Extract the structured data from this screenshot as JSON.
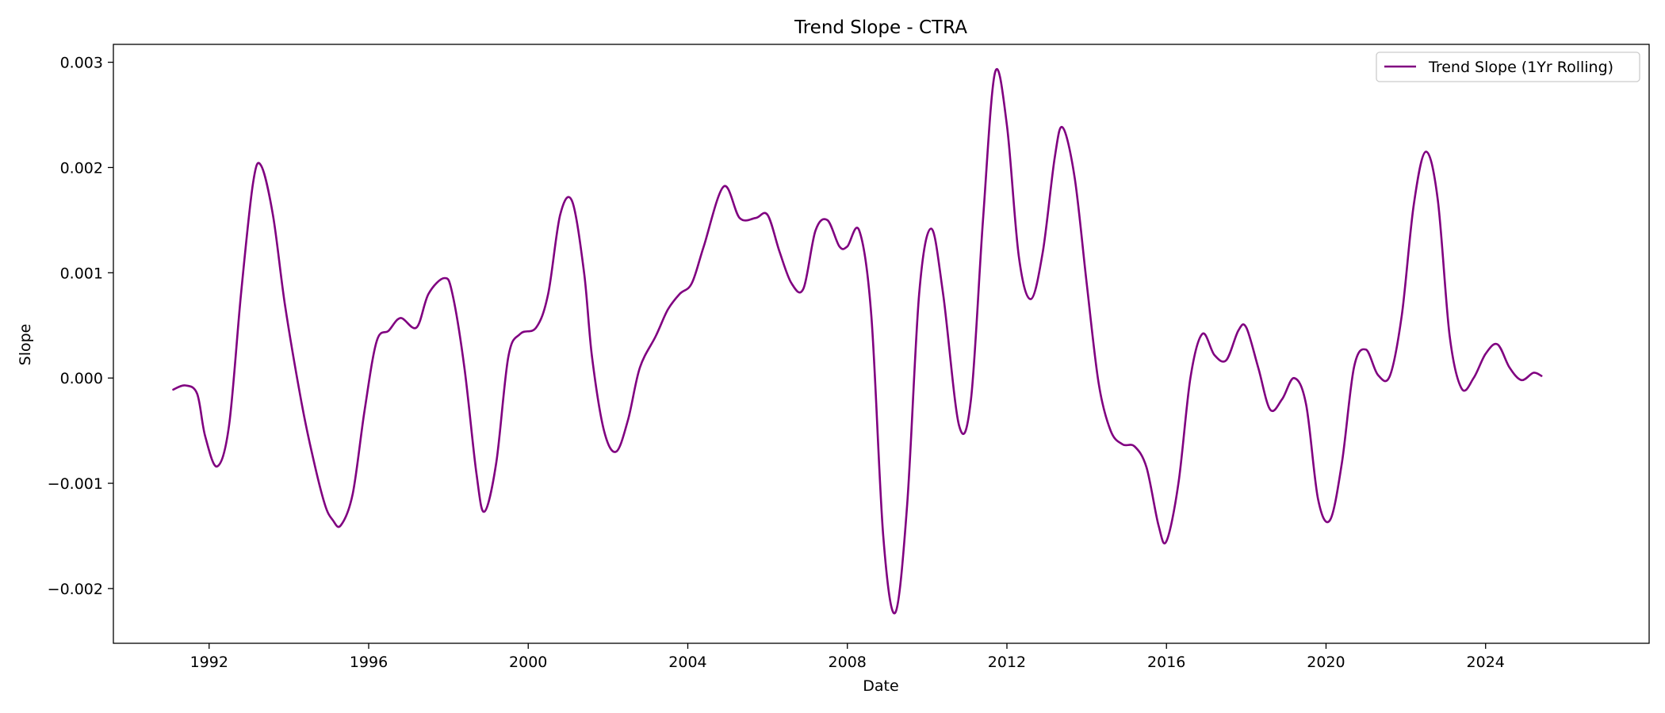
{
  "chart_data": {
    "type": "line",
    "title": "Trend Slope - CTRA",
    "xlabel": "Date",
    "ylabel": "Slope",
    "xlim": [
      1989.6,
      2028.1
    ],
    "ylim": [
      -0.00252,
      0.00317
    ],
    "xticks": [
      1992,
      1996,
      2000,
      2004,
      2008,
      2012,
      2016,
      2020,
      2024
    ],
    "xtick_labels": [
      "1992",
      "1996",
      "2000",
      "2004",
      "2008",
      "2012",
      "2016",
      "2020",
      "2024"
    ],
    "yticks": [
      -0.002,
      -0.001,
      0.0,
      0.001,
      0.002,
      0.003
    ],
    "ytick_labels": [
      "−0.002",
      "−0.001",
      "0.000",
      "0.001",
      "0.002",
      "0.003"
    ],
    "grid": false,
    "legend_position": "top-right",
    "color": "#800080",
    "series": [
      {
        "name": "Trend Slope (1Yr Rolling)",
        "x": [
          1991.1,
          1991.4,
          1991.7,
          1991.9,
          1992.2,
          1992.5,
          1992.8,
          1993.1,
          1993.3,
          1993.6,
          1993.9,
          1994.3,
          1994.6,
          1994.9,
          1995.1,
          1995.3,
          1995.6,
          1995.9,
          1996.2,
          1996.5,
          1996.8,
          1997.2,
          1997.5,
          1997.9,
          1998.1,
          1998.4,
          1998.7,
          1998.9,
          1999.2,
          1999.5,
          1999.8,
          2000.2,
          2000.5,
          2000.8,
          2001.1,
          2001.4,
          2001.6,
          2001.9,
          2002.2,
          2002.5,
          2002.8,
          2003.2,
          2003.5,
          2003.8,
          2004.1,
          2004.4,
          2004.9,
          2005.3,
          2005.7,
          2006.0,
          2006.3,
          2006.6,
          2006.9,
          2007.2,
          2007.5,
          2007.8,
          2008.0,
          2008.3,
          2008.6,
          2008.9,
          2009.2,
          2009.5,
          2009.8,
          2010.1,
          2010.4,
          2010.8,
          2011.1,
          2011.4,
          2011.7,
          2012.0,
          2012.3,
          2012.6,
          2012.9,
          2013.2,
          2013.4,
          2013.7,
          2014.0,
          2014.3,
          2014.6,
          2014.9,
          2015.2,
          2015.5,
          2015.8,
          2016.0,
          2016.3,
          2016.6,
          2016.9,
          2017.2,
          2017.5,
          2017.8,
          2018.0,
          2018.3,
          2018.6,
          2018.9,
          2019.2,
          2019.5,
          2019.8,
          2020.1,
          2020.4,
          2020.7,
          2021.0,
          2021.3,
          2021.6,
          2021.9,
          2022.2,
          2022.5,
          2022.8,
          2023.1,
          2023.4,
          2023.7,
          2024.0,
          2024.3,
          2024.6,
          2024.9,
          2025.2,
          2025.4
        ],
        "y": [
          -0.00011,
          -7e-05,
          -0.00015,
          -0.00055,
          -0.00084,
          -0.00045,
          0.0008,
          0.00185,
          0.00202,
          0.00155,
          0.0007,
          -0.0002,
          -0.00075,
          -0.0012,
          -0.00135,
          -0.0014,
          -0.0011,
          -0.0003,
          0.00035,
          0.00045,
          0.00057,
          0.00048,
          0.0008,
          0.00095,
          0.0008,
          0.0001,
          -0.0009,
          -0.00127,
          -0.0008,
          0.0002,
          0.00042,
          0.00048,
          0.0008,
          0.00155,
          0.00168,
          0.001,
          0.0002,
          -0.0005,
          -0.0007,
          -0.0004,
          0.0001,
          0.0004,
          0.00065,
          0.0008,
          0.0009,
          0.00125,
          0.00182,
          0.00152,
          0.00152,
          0.00155,
          0.0012,
          0.0009,
          0.00085,
          0.0014,
          0.0015,
          0.00125,
          0.00125,
          0.0014,
          0.0006,
          -0.0015,
          -0.00223,
          -0.0012,
          0.0008,
          0.00142,
          0.0008,
          -0.00045,
          -0.0002,
          0.0015,
          0.0029,
          0.0024,
          0.00115,
          0.00075,
          0.0012,
          0.0021,
          0.00238,
          0.0019,
          0.0009,
          -5e-05,
          -0.0005,
          -0.00063,
          -0.00065,
          -0.00085,
          -0.0014,
          -0.00155,
          -0.001,
          0.0,
          0.00042,
          0.00022,
          0.00017,
          0.00045,
          0.00048,
          0.0001,
          -0.0003,
          -0.0002,
          0.0,
          -0.00025,
          -0.00115,
          -0.00135,
          -0.0008,
          0.0001,
          0.00027,
          3e-05,
          2e-05,
          0.0006,
          0.00165,
          0.00215,
          0.0017,
          0.0004,
          -0.0001,
          0.0,
          0.00023,
          0.00032,
          0.0001,
          -2e-05,
          5e-05,
          2e-05
        ]
      }
    ]
  }
}
